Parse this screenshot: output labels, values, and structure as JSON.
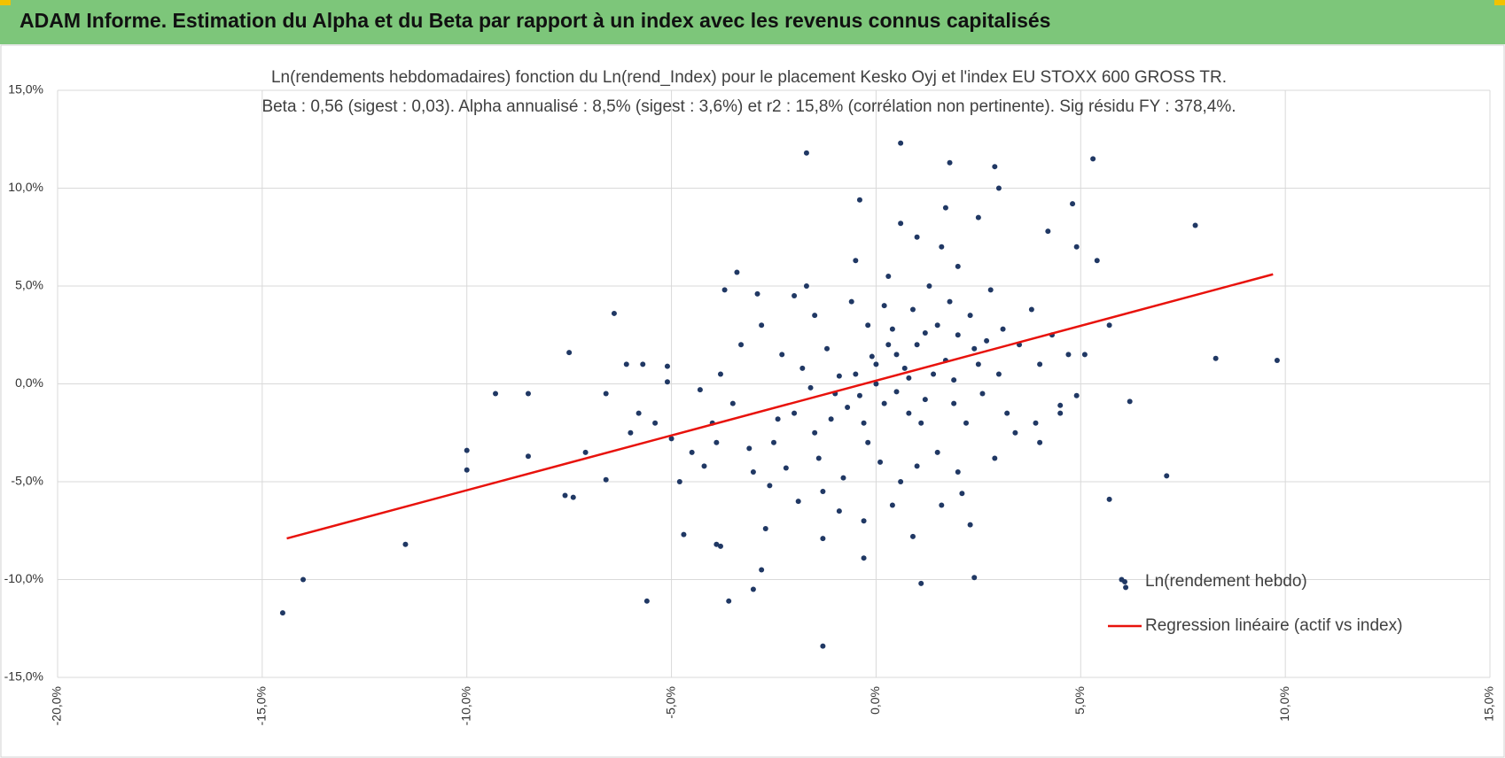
{
  "header": {
    "title": "ADAM Informe. Estimation du Alpha et du Beta par rapport à un index avec les revenus connus capitalisés"
  },
  "chart_data": {
    "type": "scatter",
    "title": "Ln(rendements hebdomadaires) fonction du Ln(rend_Index) pour le placement Kesko Oyj et l'index EU STOXX 600 GROSS TR.",
    "subtitle": "Beta : 0,56 (sigest : 0,03). Alpha annualisé : 8,5% (sigest : 3,6%) et r2 : 15,8% (corrélation non pertinente). Sig résidu FY : 378,4%.",
    "xlim": [
      -20,
      15
    ],
    "ylim": [
      -15,
      15
    ],
    "xticks": [
      {
        "value": -20,
        "label": "-20,0%"
      },
      {
        "value": -15,
        "label": "-15,0%"
      },
      {
        "value": -10,
        "label": "-10,0%"
      },
      {
        "value": -5,
        "label": "-5,0%"
      },
      {
        "value": 0,
        "label": "0,0%"
      },
      {
        "value": 5,
        "label": "5,0%"
      },
      {
        "value": 10,
        "label": "10,0%"
      },
      {
        "value": 15,
        "label": "15,0%"
      }
    ],
    "yticks": [
      {
        "value": -15,
        "label": "-15,0%"
      },
      {
        "value": -10,
        "label": "-10,0%"
      },
      {
        "value": -5,
        "label": "-5,0%"
      },
      {
        "value": 0,
        "label": "0,0%"
      },
      {
        "value": 5,
        "label": "5,0%"
      },
      {
        "value": 10,
        "label": "10,0%"
      },
      {
        "value": 15,
        "label": "15,0%"
      }
    ],
    "grid": true,
    "legend": "lower right",
    "series": [
      {
        "name": "Ln(rendement hebdo)",
        "color": "#203864",
        "type": "scatter",
        "x": [
          -14.5,
          -14.0,
          -11.5,
          -10.0,
          -10.0,
          -9.3,
          -8.5,
          -8.5,
          -7.5,
          -7.6,
          -7.4,
          -7.1,
          -6.4,
          -6.6,
          -6.6,
          -6.1,
          -5.7,
          -5.6,
          -5.1,
          -5.1,
          -4.7,
          -3.9,
          -3.8,
          -3.6,
          -3.4,
          -2.8,
          -3.0,
          -1.7,
          -1.3,
          -1.3,
          -0.4,
          -0.3,
          0.6,
          1.1,
          1.8,
          2.4,
          2.9,
          3.0,
          4.8,
          5.3,
          5.4,
          4.9,
          5.1,
          5.7,
          5.7,
          6.0,
          6.1,
          6.2,
          7.1,
          7.8,
          8.3,
          9.8,
          4.9,
          4.5,
          4.0,
          4.2,
          -3.0,
          -2.5,
          -2.0,
          -1.5,
          -1.0,
          -0.5,
          0,
          0.5,
          1.0,
          1.5,
          2.0,
          2.5,
          0.2,
          0.8,
          1.2,
          -0.3,
          0.4,
          1.8,
          2.3,
          -1.8,
          -2.3,
          -3.5,
          -4.0,
          -4.5,
          -3.8,
          0.1,
          0.6,
          -0.8,
          1.5,
          2.2,
          3.0,
          3.5,
          3.2,
          2.8,
          1.3,
          0.3,
          -0.6,
          -1.5,
          -2.0,
          -2.8,
          -3.3,
          -1.2,
          -0.2,
          0.9,
          1.7,
          2.6,
          1.1,
          -0.7,
          -1.4,
          -2.6,
          -1.9,
          -0.9,
          0.4,
          1.6,
          2.3,
          -2.7,
          -0.3,
          0.9,
          3.4,
          4.0,
          4.3,
          3.8,
          2.0,
          1.6,
          1.0,
          2.5,
          1.7,
          0.6,
          -0.5,
          -1.7,
          -2.9,
          -3.7,
          4.5,
          3.9,
          -4.2,
          -4.8,
          -5.0,
          -5.4,
          -4.3,
          -3.1,
          -2.2,
          0.0,
          0.7,
          -0.1,
          1.4,
          0.5,
          -0.4,
          1.9,
          2.4,
          -1.1,
          0.3,
          1.2,
          -0.9,
          0.8,
          1.9,
          -1.6,
          -2.4,
          3.1,
          2.7,
          0.2,
          -0.2,
          1.0,
          -1.3,
          2.0,
          -3.9,
          -5.8,
          -6.0,
          4.7,
          2.9,
          2.1
        ],
        "values": [
          -11.7,
          -10.0,
          -8.2,
          -3.4,
          -4.4,
          -0.5,
          -0.5,
          -3.7,
          1.6,
          -5.7,
          -5.8,
          -3.5,
          3.6,
          -0.5,
          -4.9,
          1.0,
          1.0,
          -11.1,
          0.9,
          0.1,
          -7.7,
          -8.2,
          -8.3,
          -11.1,
          5.7,
          -9.5,
          -10.5,
          11.8,
          -7.9,
          -13.4,
          9.4,
          -8.9,
          12.3,
          -10.2,
          11.3,
          -9.9,
          11.1,
          10.0,
          9.2,
          11.5,
          6.3,
          7.0,
          1.5,
          3.0,
          -5.9,
          -10.0,
          -10.4,
          -0.9,
          -4.7,
          8.1,
          1.3,
          1.2,
          -0.6,
          -1.1,
          -3.0,
          7.8,
          -4.5,
          -3.0,
          -1.5,
          -2.5,
          -0.5,
          0.5,
          1.0,
          1.5,
          2.0,
          3.0,
          2.5,
          1.0,
          -1.0,
          0.3,
          -0.8,
          -2.0,
          2.8,
          4.2,
          3.5,
          0.8,
          1.5,
          -1.0,
          -2.0,
          -3.5,
          0.5,
          -4.0,
          -5.0,
          -4.8,
          -3.5,
          -2.0,
          0.5,
          2.0,
          -1.5,
          4.8,
          5.0,
          5.5,
          4.2,
          3.5,
          4.5,
          3.0,
          2.0,
          1.8,
          3.0,
          3.8,
          1.2,
          -0.5,
          -2.0,
          -1.2,
          -3.8,
          -5.2,
          -6.0,
          -6.5,
          -6.2,
          -6.2,
          -7.2,
          -7.4,
          -7.0,
          -7.8,
          -2.5,
          1.0,
          2.5,
          3.8,
          6.0,
          7.0,
          7.5,
          8.5,
          9.0,
          8.2,
          6.3,
          5.0,
          4.6,
          4.8,
          -1.5,
          -2.0,
          -4.2,
          -5.0,
          -2.8,
          -2.0,
          -0.3,
          -3.3,
          -4.3,
          0.0,
          0.8,
          1.4,
          0.5,
          -0.4,
          -0.6,
          0.2,
          1.8,
          -1.8,
          2.0,
          2.6,
          0.4,
          -1.5,
          -1.0,
          -0.2,
          -1.8,
          2.8,
          2.2,
          4.0,
          -3.0,
          -4.2,
          -5.5,
          -4.5,
          -3.0,
          -1.5,
          -2.5,
          1.5,
          -3.8,
          -5.6
        ]
      },
      {
        "name": "Regression linéaire (actif vs index)",
        "color": "#e8120c",
        "type": "line",
        "x": [
          -14.4,
          9.7
        ],
        "values": [
          -7.9,
          5.6
        ]
      }
    ]
  }
}
